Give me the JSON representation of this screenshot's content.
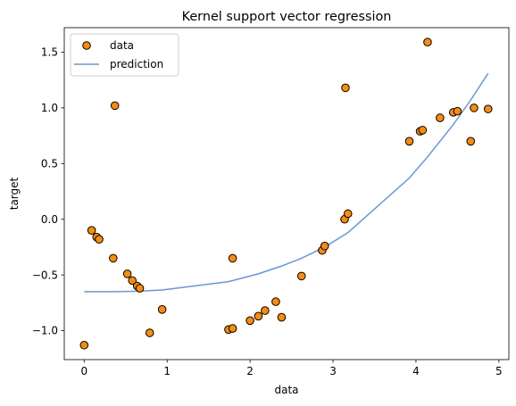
{
  "chart_data": {
    "type": "scatter",
    "title": "Kernel support vector regression",
    "xlabel": "data",
    "ylabel": "target",
    "xlim": [
      -0.24,
      5.12
    ],
    "ylim": [
      -1.26,
      1.72
    ],
    "xticks": [
      0,
      1,
      2,
      3,
      4,
      5
    ],
    "xtick_labels": [
      "0",
      "1",
      "2",
      "3",
      "4",
      "5"
    ],
    "yticks": [
      -1.0,
      -0.5,
      0.0,
      0.5,
      1.0,
      1.5
    ],
    "ytick_labels": [
      "−1.0",
      "−0.5",
      "0.0",
      "0.5",
      "1.0",
      "1.5"
    ],
    "grid": false,
    "legend_position": "top-left",
    "series": [
      {
        "name": "data",
        "kind": "scatter",
        "color": "#ff8c00",
        "edgecolor": "#000000",
        "x": [
          0.0,
          0.09,
          0.15,
          0.18,
          0.35,
          0.37,
          0.52,
          0.58,
          0.64,
          0.67,
          0.79,
          0.94,
          1.74,
          1.79,
          1.79,
          2.0,
          2.1,
          2.18,
          2.31,
          2.38,
          2.62,
          2.87,
          2.9,
          3.14,
          3.15,
          3.18,
          3.92,
          4.05,
          4.08,
          4.14,
          4.29,
          4.45,
          4.5,
          4.66,
          4.7,
          4.87
        ],
        "y": [
          -1.13,
          -0.1,
          -0.16,
          -0.18,
          -0.35,
          1.02,
          -0.49,
          -0.55,
          -0.6,
          -0.62,
          -1.02,
          -0.81,
          -0.99,
          -0.98,
          -0.35,
          -0.91,
          -0.87,
          -0.82,
          -0.74,
          -0.88,
          -0.51,
          -0.28,
          -0.24,
          0.0,
          1.18,
          0.05,
          0.7,
          0.79,
          0.8,
          1.59,
          0.91,
          0.96,
          0.97,
          0.7,
          1.0,
          0.99
        ]
      },
      {
        "name": "prediction",
        "kind": "line",
        "color": "#6495ed",
        "x": [
          0.0,
          0.35,
          0.52,
          0.67,
          0.94,
          1.74,
          2.1,
          2.38,
          2.62,
          2.9,
          3.18,
          3.92,
          4.14,
          4.45,
          4.66,
          4.87
        ],
        "y": [
          -0.65,
          -0.65,
          -0.648,
          -0.645,
          -0.635,
          -0.56,
          -0.49,
          -0.42,
          -0.35,
          -0.25,
          -0.12,
          0.37,
          0.56,
          0.85,
          1.07,
          1.31
        ]
      }
    ]
  }
}
